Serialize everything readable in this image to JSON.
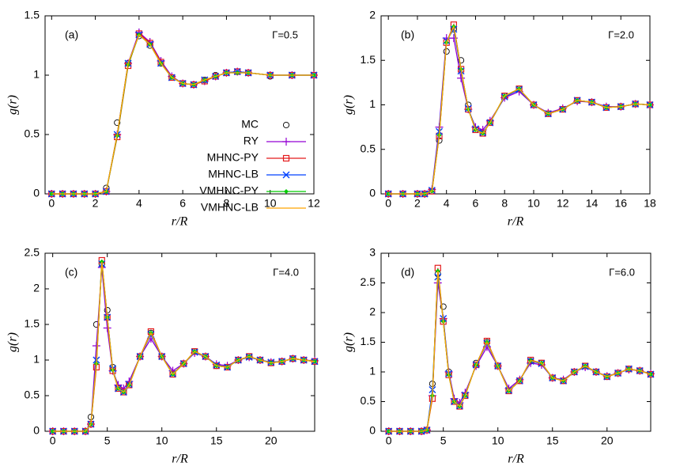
{
  "chart_data": [
    {
      "type": "line",
      "panel_label": "(a)",
      "annotation": "Γ=0.5",
      "x_label": "r/R",
      "y_label": "g(r)",
      "legend": "right",
      "xlim": [
        -0.3,
        12
      ],
      "ylim": [
        0,
        1.5
      ],
      "xticks": [
        0,
        2,
        4,
        6,
        8,
        10,
        12
      ],
      "yticks": [
        0,
        0.5,
        1,
        1.5
      ],
      "x": [
        0,
        0.5,
        1,
        1.5,
        2,
        2.5,
        3,
        3.5,
        4,
        4.5,
        5,
        5.5,
        6,
        6.5,
        7,
        7.5,
        8,
        8.5,
        9,
        10,
        11,
        12
      ],
      "series": [
        {
          "name": "MC",
          "color": "#000000",
          "marker": "circle",
          "line": false,
          "values": [
            0,
            0,
            0,
            0,
            0,
            0.05,
            0.6,
            1.1,
            1.33,
            1.25,
            1.1,
            0.98,
            0.93,
            0.92,
            0.96,
            1.0,
            1.02,
            1.03,
            1.02,
            0.99,
            1.0,
            1.0
          ]
        },
        {
          "name": "RY",
          "color": "#9400d3",
          "marker": "plus",
          "line": true,
          "values": [
            0,
            0,
            0,
            0,
            0,
            0.02,
            0.5,
            1.1,
            1.36,
            1.28,
            1.12,
            0.99,
            0.93,
            0.92,
            0.95,
            0.99,
            1.02,
            1.03,
            1.02,
            1.0,
            1.0,
            1.0
          ]
        },
        {
          "name": "MHNC-PY",
          "color": "#e41a1c",
          "marker": "square",
          "line": true,
          "values": [
            0,
            0,
            0,
            0,
            0,
            0.02,
            0.48,
            1.08,
            1.35,
            1.27,
            1.11,
            0.98,
            0.93,
            0.92,
            0.95,
            0.99,
            1.02,
            1.03,
            1.02,
            1.0,
            1.0,
            1.0
          ]
        },
        {
          "name": "MHNC-LB",
          "color": "#0040ff",
          "marker": "cross",
          "line": true,
          "values": [
            0,
            0,
            0,
            0,
            0,
            0.02,
            0.5,
            1.1,
            1.34,
            1.26,
            1.1,
            0.98,
            0.93,
            0.92,
            0.96,
            0.99,
            1.02,
            1.03,
            1.02,
            1.0,
            1.0,
            1.0
          ]
        },
        {
          "name": "VMHNC-PY",
          "color": "#00cc00",
          "marker": "diamond",
          "line": true,
          "values": [
            0,
            0,
            0,
            0,
            0,
            0.02,
            0.49,
            1.09,
            1.34,
            1.26,
            1.1,
            0.98,
            0.93,
            0.92,
            0.96,
            0.99,
            1.02,
            1.02,
            1.02,
            1.0,
            1.0,
            1.0
          ]
        },
        {
          "name": "VMHNC-LB",
          "color": "#ffa500",
          "line": true,
          "values": [
            0,
            0,
            0,
            0,
            0,
            0.02,
            0.5,
            1.1,
            1.34,
            1.26,
            1.1,
            0.98,
            0.93,
            0.92,
            0.96,
            0.99,
            1.02,
            1.02,
            1.02,
            1.0,
            1.0,
            1.0
          ]
        }
      ]
    },
    {
      "type": "line",
      "panel_label": "(b)",
      "annotation": "Γ=2.0",
      "x_label": "r/R",
      "y_label": "g(r)",
      "xlim": [
        -0.5,
        18
      ],
      "ylim": [
        0,
        2
      ],
      "xticks": [
        0,
        2,
        4,
        6,
        8,
        10,
        12,
        14,
        16,
        18
      ],
      "yticks": [
        0,
        0.5,
        1,
        1.5,
        2
      ],
      "x": [
        0,
        1,
        2,
        2.5,
        3,
        3.5,
        4,
        4.5,
        5,
        5.5,
        6,
        6.5,
        7,
        8,
        9,
        10,
        11,
        12,
        13,
        14,
        15,
        16,
        17,
        18
      ],
      "series": [
        {
          "color": "#000000",
          "marker": "circle",
          "line": false,
          "values": [
            0,
            0,
            0,
            0,
            0.03,
            0.6,
            1.6,
            1.85,
            1.5,
            1.0,
            0.72,
            0.68,
            0.8,
            1.1,
            1.18,
            1.0,
            0.9,
            0.95,
            1.05,
            1.03,
            0.97,
            0.98,
            1.01,
            1.0
          ]
        },
        {
          "color": "#9400d3",
          "marker": "plus",
          "line": true,
          "values": [
            0,
            0,
            0,
            0,
            0.05,
            0.75,
            1.75,
            1.75,
            1.3,
            0.95,
            0.75,
            0.72,
            0.82,
            1.08,
            1.15,
            1.0,
            0.91,
            0.96,
            1.04,
            1.03,
            0.98,
            0.98,
            1.01,
            1.0
          ]
        },
        {
          "color": "#e41a1c",
          "marker": "square",
          "line": true,
          "values": [
            0,
            0,
            0,
            0,
            0.03,
            0.65,
            1.7,
            1.9,
            1.4,
            0.95,
            0.72,
            0.68,
            0.8,
            1.1,
            1.18,
            1.0,
            0.9,
            0.95,
            1.05,
            1.03,
            0.97,
            0.98,
            1.01,
            1.0
          ]
        },
        {
          "color": "#0040ff",
          "marker": "cross",
          "line": true,
          "values": [
            0,
            0,
            0,
            0,
            0.04,
            0.7,
            1.72,
            1.85,
            1.38,
            0.96,
            0.73,
            0.69,
            0.8,
            1.09,
            1.17,
            1.0,
            0.9,
            0.95,
            1.05,
            1.03,
            0.97,
            0.98,
            1.01,
            1.0
          ]
        },
        {
          "color": "#00cc00",
          "marker": "diamond",
          "line": true,
          "values": [
            0,
            0,
            0,
            0,
            0.03,
            0.66,
            1.7,
            1.88,
            1.4,
            0.95,
            0.72,
            0.68,
            0.8,
            1.1,
            1.18,
            1.0,
            0.9,
            0.95,
            1.05,
            1.03,
            0.97,
            0.98,
            1.01,
            1.0
          ]
        },
        {
          "color": "#ffa500",
          "line": true,
          "values": [
            0,
            0,
            0,
            0,
            0.03,
            0.66,
            1.7,
            1.88,
            1.4,
            0.95,
            0.72,
            0.68,
            0.8,
            1.1,
            1.18,
            1.0,
            0.9,
            0.95,
            1.05,
            1.03,
            0.97,
            0.98,
            1.01,
            1.0
          ]
        }
      ]
    },
    {
      "type": "line",
      "panel_label": "(c)",
      "annotation": "Γ=4.0",
      "x_label": "r/R",
      "y_label": "g(r)",
      "xlim": [
        -0.7,
        24
      ],
      "ylim": [
        0,
        2.5
      ],
      "xticks": [
        0,
        5,
        10,
        15,
        20
      ],
      "yticks": [
        0,
        0.5,
        1,
        1.5,
        2,
        2.5
      ],
      "x": [
        0,
        1,
        2,
        3,
        3.5,
        4,
        4.5,
        5,
        5.5,
        6,
        6.5,
        7,
        8,
        9,
        10,
        11,
        12,
        13,
        14,
        15,
        16,
        17,
        18,
        19,
        20,
        21,
        22,
        23,
        24
      ],
      "series": [
        {
          "color": "#000000",
          "marker": "circle",
          "line": false,
          "values": [
            0,
            0,
            0,
            0,
            0.2,
            1.5,
            2.35,
            1.7,
            0.9,
            0.6,
            0.55,
            0.65,
            1.05,
            1.38,
            1.05,
            0.8,
            0.95,
            1.12,
            1.05,
            0.92,
            0.9,
            1.0,
            1.05,
            1.0,
            0.96,
            0.98,
            1.02,
            1.0,
            0.98
          ]
        },
        {
          "color": "#9400d3",
          "marker": "plus",
          "line": true,
          "values": [
            0,
            0,
            0,
            0,
            0.1,
            1.2,
            2.3,
            1.45,
            0.85,
            0.65,
            0.6,
            0.7,
            1.05,
            1.3,
            1.05,
            0.85,
            0.95,
            1.1,
            1.05,
            0.94,
            0.92,
            1.0,
            1.04,
            1.0,
            0.97,
            0.98,
            1.02,
            1.0,
            0.99
          ]
        },
        {
          "color": "#e41a1c",
          "marker": "square",
          "line": true,
          "values": [
            0,
            0,
            0,
            0,
            0.1,
            0.9,
            2.4,
            1.6,
            0.85,
            0.6,
            0.55,
            0.65,
            1.05,
            1.4,
            1.05,
            0.8,
            0.95,
            1.12,
            1.05,
            0.92,
            0.9,
            1.0,
            1.05,
            1.0,
            0.96,
            0.98,
            1.02,
            1.0,
            0.98
          ]
        },
        {
          "color": "#0040ff",
          "marker": "cross",
          "line": true,
          "values": [
            0,
            0,
            0,
            0,
            0.1,
            1.0,
            2.35,
            1.6,
            0.88,
            0.6,
            0.55,
            0.66,
            1.05,
            1.36,
            1.05,
            0.81,
            0.95,
            1.11,
            1.05,
            0.93,
            0.9,
            1.0,
            1.04,
            1.0,
            0.97,
            0.98,
            1.02,
            1.0,
            0.98
          ]
        },
        {
          "color": "#00cc00",
          "marker": "diamond",
          "line": true,
          "values": [
            0,
            0,
            0,
            0,
            0.1,
            0.95,
            2.38,
            1.6,
            0.86,
            0.6,
            0.55,
            0.65,
            1.05,
            1.38,
            1.05,
            0.8,
            0.95,
            1.12,
            1.05,
            0.92,
            0.9,
            1.0,
            1.05,
            1.0,
            0.96,
            0.98,
            1.02,
            1.0,
            0.98
          ]
        },
        {
          "color": "#ffa500",
          "line": true,
          "values": [
            0,
            0,
            0,
            0,
            0.1,
            0.95,
            2.38,
            1.6,
            0.86,
            0.6,
            0.55,
            0.65,
            1.05,
            1.38,
            1.05,
            0.8,
            0.95,
            1.12,
            1.05,
            0.92,
            0.9,
            1.0,
            1.05,
            1.0,
            0.96,
            0.98,
            1.02,
            1.0,
            0.98
          ]
        }
      ]
    },
    {
      "type": "line",
      "panel_label": "(d)",
      "annotation": "Γ=6.0",
      "x_label": "r/R",
      "y_label": "g(r)",
      "xlim": [
        -0.7,
        24
      ],
      "ylim": [
        0,
        3
      ],
      "xticks": [
        0,
        5,
        10,
        15,
        20
      ],
      "yticks": [
        0,
        0.5,
        1,
        1.5,
        2,
        2.5,
        3
      ],
      "x": [
        0,
        1,
        2,
        3,
        3.5,
        4,
        4.5,
        5,
        5.5,
        6,
        6.5,
        7,
        8,
        9,
        10,
        11,
        12,
        13,
        14,
        15,
        16,
        17,
        18,
        19,
        20,
        21,
        22,
        23,
        24
      ],
      "series": [
        {
          "color": "#000000",
          "marker": "circle",
          "line": false,
          "values": [
            0,
            0,
            0,
            0,
            0.02,
            0.8,
            2.65,
            2.1,
            1.0,
            0.5,
            0.42,
            0.6,
            1.15,
            1.5,
            1.1,
            0.68,
            0.85,
            1.18,
            1.15,
            0.9,
            0.85,
            1.0,
            1.1,
            1.0,
            0.92,
            0.98,
            1.05,
            1.02,
            0.96
          ]
        },
        {
          "color": "#9400d3",
          "marker": "plus",
          "line": true,
          "values": [
            0,
            0,
            0,
            0,
            0.02,
            0.6,
            2.5,
            1.9,
            1.0,
            0.55,
            0.48,
            0.65,
            1.1,
            1.42,
            1.1,
            0.72,
            0.87,
            1.15,
            1.12,
            0.9,
            0.87,
            1.0,
            1.08,
            1.0,
            0.93,
            0.98,
            1.04,
            1.02,
            0.97
          ]
        },
        {
          "color": "#e41a1c",
          "marker": "square",
          "line": true,
          "values": [
            0,
            0,
            0,
            0,
            0.02,
            0.55,
            2.75,
            1.85,
            0.95,
            0.5,
            0.42,
            0.6,
            1.12,
            1.52,
            1.1,
            0.68,
            0.85,
            1.2,
            1.15,
            0.9,
            0.85,
            1.0,
            1.1,
            1.0,
            0.92,
            0.98,
            1.05,
            1.02,
            0.96
          ]
        },
        {
          "color": "#0040ff",
          "marker": "cross",
          "line": true,
          "values": [
            0,
            0,
            0,
            0,
            0.02,
            0.7,
            2.6,
            1.9,
            0.97,
            0.5,
            0.43,
            0.61,
            1.12,
            1.48,
            1.1,
            0.69,
            0.85,
            1.18,
            1.14,
            0.9,
            0.85,
            1.0,
            1.09,
            1.0,
            0.92,
            0.98,
            1.05,
            1.02,
            0.96
          ]
        },
        {
          "color": "#00cc00",
          "marker": "diamond",
          "line": true,
          "values": [
            0,
            0,
            0,
            0,
            0.02,
            0.6,
            2.7,
            1.85,
            0.95,
            0.5,
            0.42,
            0.6,
            1.12,
            1.5,
            1.1,
            0.68,
            0.85,
            1.19,
            1.15,
            0.9,
            0.85,
            1.0,
            1.1,
            1.0,
            0.92,
            0.98,
            1.05,
            1.02,
            0.96
          ]
        },
        {
          "color": "#ffa500",
          "line": true,
          "values": [
            0,
            0,
            0,
            0,
            0.02,
            0.6,
            2.7,
            1.85,
            0.95,
            0.5,
            0.42,
            0.6,
            1.12,
            1.5,
            1.1,
            0.68,
            0.85,
            1.19,
            1.15,
            0.9,
            0.85,
            1.0,
            1.1,
            1.0,
            0.92,
            0.98,
            1.05,
            1.02,
            0.96
          ]
        }
      ]
    }
  ]
}
